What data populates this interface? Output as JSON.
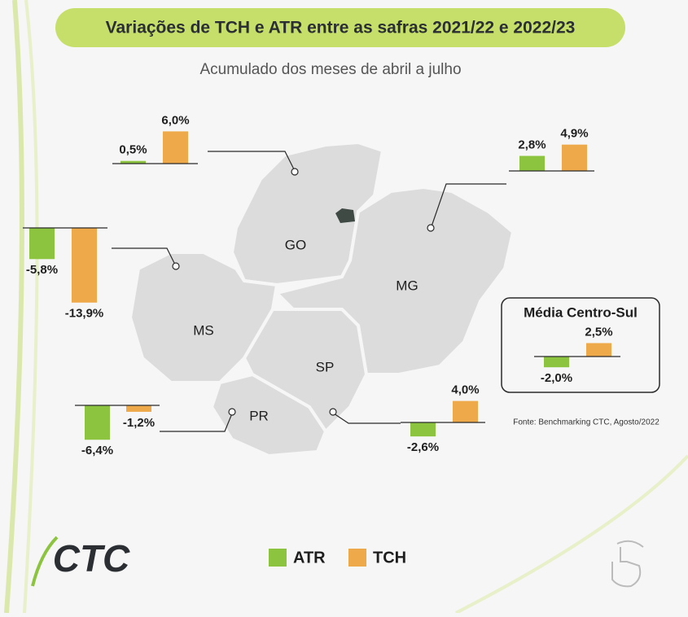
{
  "title": "Variações de TCH e ATR entre as safras 2021/22 e 2022/23",
  "subtitle": "Acumulado dos meses de abril a julho",
  "source": "Fonte: Benchmarking CTC, Agosto/2022",
  "logo": "CTC",
  "chart_data": {
    "type": "bar",
    "categories": [
      "GO",
      "MS",
      "PR",
      "MG",
      "SP",
      "Média Centro-Sul"
    ],
    "series": [
      {
        "name": "ATR",
        "color": "#8cc43f",
        "values": [
          0.5,
          -5.8,
          -6.4,
          2.8,
          -2.6,
          -2.0
        ],
        "value_labels": [
          "0,5%",
          "-5,8%",
          "-6,4%",
          "2,8%",
          "-2,6%",
          "-2,0%"
        ]
      },
      {
        "name": "TCH",
        "color": "#eea94a",
        "values": [
          6.0,
          -13.9,
          -1.2,
          4.9,
          4.0,
          2.5
        ],
        "value_labels": [
          "6,0%",
          "-13,9%",
          "-1,2%",
          "4,9%",
          "4,0%",
          "2,5%"
        ]
      }
    ]
  }
}
